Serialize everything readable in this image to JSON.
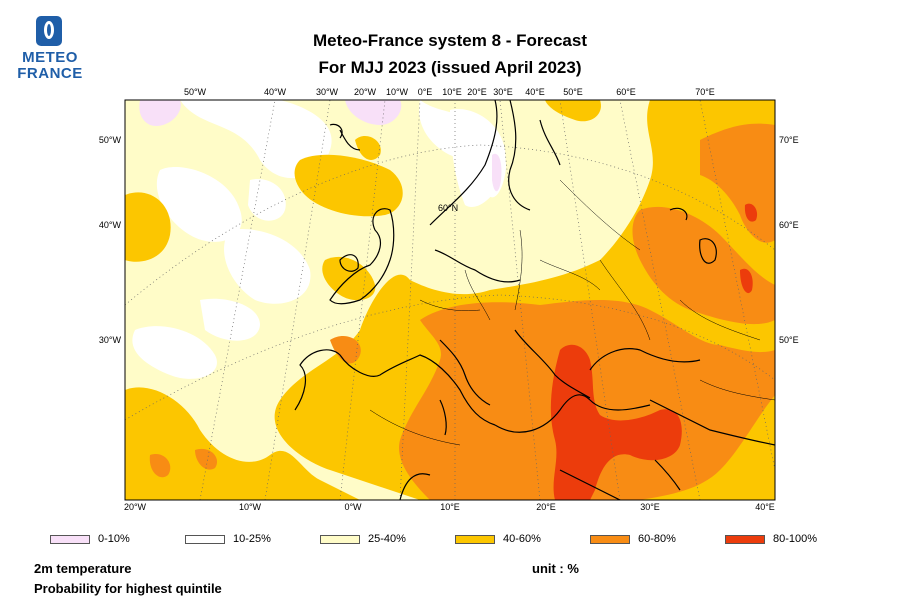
{
  "logo": {
    "line1": "METEO",
    "line2": "FRANCE"
  },
  "title": {
    "line1": "Meteo-France system 8  -  Forecast",
    "line2": "For MJJ 2023      (issued April 2023)"
  },
  "map": {
    "top_lon_labels": [
      "50°W",
      "40°W",
      "30°W",
      "20°W",
      "10°W",
      "0°E",
      "10°E",
      "20°E",
      "30°E",
      "40°E",
      "50°E",
      "60°E",
      "70°E"
    ],
    "bottom_lon_labels": [
      "20°W",
      "10°W",
      "0°W",
      "10°E",
      "20°E",
      "30°E",
      "40°E"
    ],
    "left_labels": [
      "50°W",
      "40°W",
      "30°W"
    ],
    "right_labels": [
      "70°E",
      "60°E",
      "50°E"
    ],
    "inner_label": "60°N"
  },
  "legend": [
    {
      "label": "0-10%",
      "color": "#f8e0f8"
    },
    {
      "label": "10-25%",
      "color": "#ffffff"
    },
    {
      "label": "25-40%",
      "color": "#fffcc8"
    },
    {
      "label": "40-60%",
      "color": "#fcc600"
    },
    {
      "label": "60-80%",
      "color": "#f88c14"
    },
    {
      "label": "80-100%",
      "color": "#ec3c0c"
    }
  ],
  "footer": {
    "variable": "2m temperature",
    "subtitle": "Probability for highest quintile",
    "unit": "unit : %"
  }
}
